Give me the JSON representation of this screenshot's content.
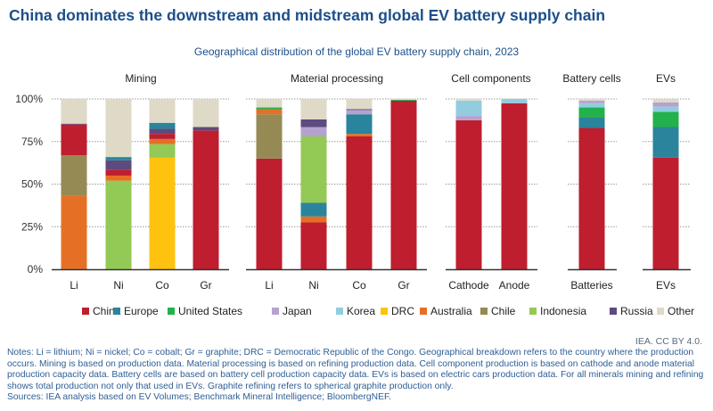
{
  "title": "China dominates the downstream and midstream global EV battery supply chain",
  "credit": "IEA. CC BY 4.0.",
  "notes": "Notes: Li = lithium; Ni = nickel; Co = cobalt; Gr = graphite; DRC = Democratic Republic of the Congo. Geographical breakdown refers to the country where the production occurs. Mining is based on production data. Material processing is based on refining production data. Cell component production is based on cathode and anode material production capacity data. Battery cells are based on battery cell production capacity data. EVs is based on electric cars production data. For all minerals mining and refining shows total production not only that used in EVs. Graphite refining refers to spherical graphite production only.",
  "sources": "Sources: IEA analysis based on EV Volumes; Benchmark Mineral Intelligence; BloombergNEF.",
  "chart_data": {
    "type": "bar",
    "stacked": true,
    "title": "Geographical distribution of the global EV battery supply chain, 2023",
    "ylim": [
      0,
      100
    ],
    "yticks": [
      "0%",
      "25%",
      "50%",
      "75%",
      "100%"
    ],
    "grid": true,
    "legend_position": "bottom",
    "series_names": [
      "China",
      "Europe",
      "United States",
      "Japan",
      "Korea",
      "DRC",
      "Australia",
      "Chile",
      "Indonesia",
      "Russia",
      "Other"
    ],
    "colors": {
      "China": "#BE1E2D",
      "Europe": "#2A849B",
      "United States": "#22B14C",
      "Japan": "#B6A2CF",
      "Korea": "#92CDDF",
      "DRC": "#FFC20E",
      "Australia": "#E57025",
      "Chile": "#968A54",
      "Indonesia": "#93C955",
      "Russia": "#5D4A7E",
      "Other": "#DEDAC7"
    },
    "groups": [
      {
        "label": "Mining",
        "bars": [
          {
            "category": "Li",
            "segments": [
              [
                "Australia",
                43
              ],
              [
                "Chile",
                24
              ],
              [
                "China",
                18
              ],
              [
                "Russia",
                0.5
              ],
              [
                "Other",
                14.5
              ]
            ]
          },
          {
            "category": "Ni",
            "segments": [
              [
                "Indonesia",
                52
              ],
              [
                "Australia",
                3
              ],
              [
                "China",
                3.5
              ],
              [
                "Russia",
                5.5
              ],
              [
                "Europe",
                1.5
              ],
              [
                "United States",
                0.5
              ],
              [
                "Other",
                34
              ]
            ]
          },
          {
            "category": "Co",
            "segments": [
              [
                "DRC",
                65.5
              ],
              [
                "Indonesia",
                8
              ],
              [
                "Australia",
                3
              ],
              [
                "China",
                3
              ],
              [
                "Russia",
                3
              ],
              [
                "Europe",
                3.5
              ],
              [
                "Other",
                14
              ]
            ]
          },
          {
            "category": "Gr",
            "segments": [
              [
                "China",
                81.5
              ],
              [
                "Russia",
                2
              ],
              [
                "Other",
                16.5
              ]
            ]
          }
        ]
      },
      {
        "label": "Material processing",
        "bars": [
          {
            "category": "Li",
            "segments": [
              [
                "China",
                65
              ],
              [
                "Chile",
                26
              ],
              [
                "Australia",
                3
              ],
              [
                "United States",
                1
              ],
              [
                "Other",
                5
              ]
            ]
          },
          {
            "category": "Ni",
            "segments": [
              [
                "China",
                27.5
              ],
              [
                "Australia",
                3.5
              ],
              [
                "Europe",
                8
              ],
              [
                "Indonesia",
                39
              ],
              [
                "Japan",
                5.5
              ],
              [
                "Russia",
                4.5
              ],
              [
                "Other",
                12
              ]
            ]
          },
          {
            "category": "Co",
            "segments": [
              [
                "China",
                78
              ],
              [
                "Australia",
                1.5
              ],
              [
                "Europe",
                11.5
              ],
              [
                "Japan",
                2.5
              ],
              [
                "Russia",
                0.5
              ],
              [
                "Other",
                6
              ]
            ]
          },
          {
            "category": "Gr",
            "segments": [
              [
                "China",
                99
              ],
              [
                "United States",
                0.5
              ],
              [
                "Other",
                0.5
              ]
            ]
          }
        ]
      },
      {
        "label": "Cell components",
        "bars": [
          {
            "category": "Cathode",
            "segments": [
              [
                "China",
                87.5
              ],
              [
                "Japan",
                2.5
              ],
              [
                "Korea",
                9
              ],
              [
                "Other",
                1
              ]
            ]
          },
          {
            "category": "Anode",
            "segments": [
              [
                "China",
                97.5
              ],
              [
                "Korea",
                2.5
              ]
            ]
          }
        ]
      },
      {
        "label": "Battery cells",
        "bars": [
          {
            "category": "Batteries",
            "segments": [
              [
                "China",
                83
              ],
              [
                "Europe",
                6
              ],
              [
                "United States",
                6
              ],
              [
                "Korea",
                2.5
              ],
              [
                "Japan",
                1.5
              ],
              [
                "Other",
                1
              ]
            ]
          }
        ]
      },
      {
        "label": "EVs",
        "bars": [
          {
            "category": "EVs",
            "segments": [
              [
                "China",
                65.5
              ],
              [
                "Europe",
                18
              ],
              [
                "United States",
                9
              ],
              [
                "Korea",
                3
              ],
              [
                "Japan",
                2.5
              ],
              [
                "Other",
                2
              ]
            ]
          }
        ]
      }
    ]
  }
}
